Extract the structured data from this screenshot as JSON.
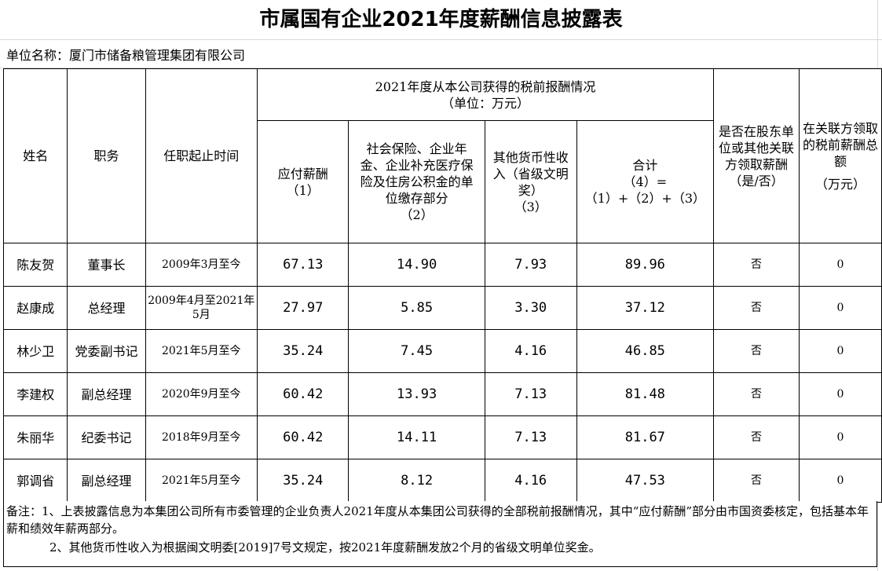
{
  "title": "市属国有企业2021年度薪酬信息披露表",
  "unit_line": "单位名称：厦门市储备粮管理集团有限公司",
  "header": {
    "name": "姓名",
    "position": "职务",
    "term": "任职起止时间",
    "group_line1": "2021年度从本公司获得的税前报酬情况",
    "group_line2": "（单位：万元）",
    "col1_line1": "应付薪酬",
    "col1_line2": "（1）",
    "col2_line1": "社会保险、企业年金、企业补充医疗保险及住房公积金的单位缴存部分",
    "col2_line2": "（2）",
    "col3_line1": "其他货币性收入（省级文明奖）",
    "col3_line2": "（3）",
    "col4_line1": "合计",
    "col4_line2": "（4）=（1）+（2）+（3）",
    "col5": "是否在股东单位或其他关联方领取薪酬（是/否）",
    "col6_line1": "在关联方领取的税前薪酬总额",
    "col6_line2": "（万元）"
  },
  "rows": [
    {
      "name": "陈友贺",
      "position": "董事长",
      "term": "2009年3月至今",
      "pay": "67.13",
      "social": "14.90",
      "other": "7.93",
      "total": "89.96",
      "related": "否",
      "related_pay": "0"
    },
    {
      "name": "赵康成",
      "position": "总经理",
      "term": "2009年4月至2021年5月",
      "pay": "27.97",
      "social": "5.85",
      "other": "3.30",
      "total": "37.12",
      "related": "否",
      "related_pay": "0"
    },
    {
      "name": "林少卫",
      "position": "党委副书记",
      "term": "2021年5月至今",
      "pay": "35.24",
      "social": "7.45",
      "other": "4.16",
      "total": "46.85",
      "related": "否",
      "related_pay": "0"
    },
    {
      "name": "李建权",
      "position": "副总经理",
      "term": "2020年9月至今",
      "pay": "60.42",
      "social": "13.93",
      "other": "7.13",
      "total": "81.48",
      "related": "否",
      "related_pay": "0"
    },
    {
      "name": "朱丽华",
      "position": "纪委书记",
      "term": "2018年9月至今",
      "pay": "60.42",
      "social": "14.11",
      "other": "7.13",
      "total": "81.67",
      "related": "否",
      "related_pay": "0"
    },
    {
      "name": "郭调省",
      "position": "副总经理",
      "term": "2021年5月至今",
      "pay": "35.24",
      "social": "8.12",
      "other": "4.16",
      "total": "47.53",
      "related": "否",
      "related_pay": "0"
    }
  ],
  "notes": {
    "line1": "备注：1、上表披露信息为本集团公司所有市委管理的企业负责人2021年度从本集团公司获得的全部税前报酬情况，其中“应付薪酬”部分由市国资委核定，包括基本年薪和绩效年薪两部分。",
    "line2": "2、其他货币性收入为根据闽文明委[2019]7号文规定，按2021年度薪酬发放2个月的省级文明单位奖金。"
  }
}
